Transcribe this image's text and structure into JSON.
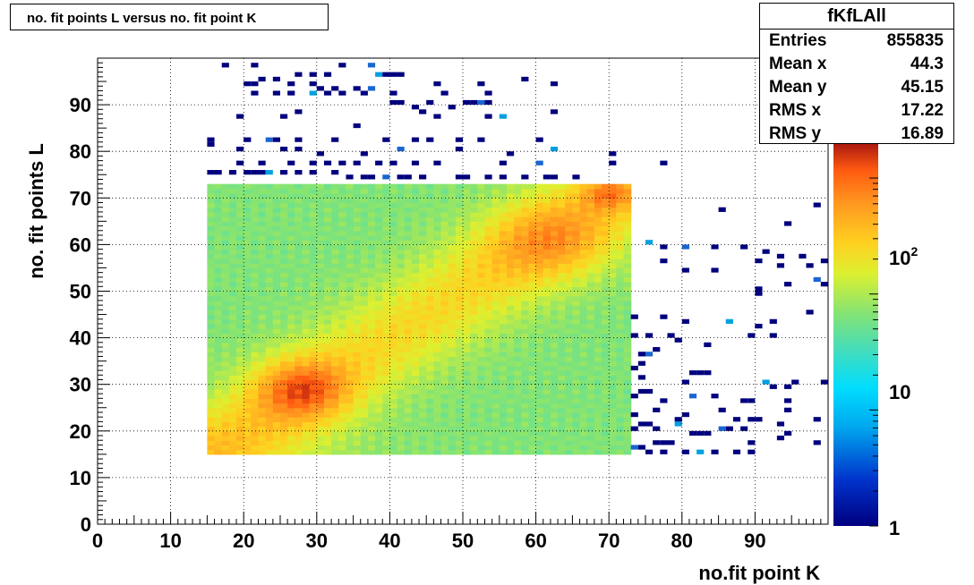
{
  "title": "no. fit points L versus no. fit point K",
  "stats": {
    "name": "fKfLAll",
    "rows": [
      {
        "label": "Entries",
        "value": "855835"
      },
      {
        "label": "Mean x",
        "value": "44.3"
      },
      {
        "label": "Mean y",
        "value": "45.15"
      },
      {
        "label": "RMS x",
        "value": "17.22"
      },
      {
        "label": "RMS y",
        "value": "16.89"
      }
    ]
  },
  "chart_data": {
    "type": "heatmap",
    "title": "no. fit points L versus no. fit point K",
    "xlabel": "no.fit point K",
    "ylabel": "no. fit points  L",
    "xlim": [
      0,
      100
    ],
    "ylim": [
      0,
      100
    ],
    "x_ticks": [
      0,
      10,
      20,
      30,
      40,
      50,
      60,
      70,
      80,
      90
    ],
    "y_ticks": [
      0,
      10,
      20,
      30,
      40,
      50,
      60,
      70,
      80,
      90
    ],
    "grid": true,
    "colorbar": {
      "scale": "log",
      "min": 1,
      "max": 2000,
      "tick_labels": [
        "1",
        "10",
        "10^2"
      ]
    },
    "dense_region": {
      "x_range": [
        15,
        73
      ],
      "y_range": [
        15,
        73
      ]
    },
    "hotspots": [
      {
        "x": 28,
        "y": 29,
        "level": "maximum"
      },
      {
        "x": 62,
        "y": 61,
        "level": "high"
      },
      {
        "x": 70,
        "y": 71,
        "level": "high"
      }
    ],
    "sparse_points": [
      [
        17,
        98
      ],
      [
        21,
        98
      ],
      [
        33,
        98
      ],
      [
        37,
        98
      ],
      [
        40,
        96
      ],
      [
        38,
        96
      ],
      [
        39,
        96
      ],
      [
        41,
        96
      ],
      [
        27,
        96
      ],
      [
        29,
        96
      ],
      [
        31,
        96
      ],
      [
        22,
        95
      ],
      [
        24,
        95
      ],
      [
        20,
        94
      ],
      [
        21,
        94
      ],
      [
        26,
        94
      ],
      [
        29,
        94
      ],
      [
        30,
        93
      ],
      [
        32,
        93
      ],
      [
        35,
        93
      ],
      [
        37,
        93
      ],
      [
        46,
        94
      ],
      [
        52,
        94
      ],
      [
        58,
        95
      ],
      [
        62,
        94
      ],
      [
        21,
        92
      ],
      [
        24,
        92
      ],
      [
        26,
        92
      ],
      [
        29,
        92
      ],
      [
        31,
        92
      ],
      [
        33,
        92
      ],
      [
        36,
        92
      ],
      [
        40,
        92
      ],
      [
        47,
        92
      ],
      [
        53,
        92
      ],
      [
        50,
        90
      ],
      [
        51,
        90
      ],
      [
        52,
        90
      ],
      [
        53,
        90
      ],
      [
        45,
        90
      ],
      [
        40,
        90
      ],
      [
        41,
        90
      ],
      [
        43,
        89
      ],
      [
        48,
        89
      ],
      [
        27,
        88
      ],
      [
        19,
        87
      ],
      [
        25,
        87
      ],
      [
        44,
        88
      ],
      [
        46,
        87
      ],
      [
        62,
        88
      ],
      [
        53,
        87
      ],
      [
        55,
        87
      ],
      [
        35,
        85
      ],
      [
        20,
        82
      ],
      [
        23,
        82
      ],
      [
        24,
        82
      ],
      [
        27,
        82
      ],
      [
        32,
        82
      ],
      [
        39,
        82
      ],
      [
        43,
        82
      ],
      [
        45,
        82
      ],
      [
        49,
        82
      ],
      [
        52,
        82
      ],
      [
        60,
        82
      ],
      [
        15,
        82
      ],
      [
        15,
        81
      ],
      [
        19,
        80
      ],
      [
        25,
        80
      ],
      [
        27,
        80
      ],
      [
        30,
        79
      ],
      [
        36,
        79
      ],
      [
        41,
        80
      ],
      [
        49,
        80
      ],
      [
        56,
        79
      ],
      [
        62,
        80
      ],
      [
        70,
        79
      ],
      [
        19,
        77
      ],
      [
        22,
        77
      ],
      [
        26,
        77
      ],
      [
        29,
        77
      ],
      [
        31,
        77
      ],
      [
        33,
        77
      ],
      [
        35,
        77
      ],
      [
        38,
        77
      ],
      [
        40,
        77
      ],
      [
        43,
        77
      ],
      [
        46,
        77
      ],
      [
        55,
        77
      ],
      [
        60,
        77
      ],
      [
        70,
        77
      ],
      [
        77,
        77
      ],
      [
        15,
        75
      ],
      [
        16,
        75
      ],
      [
        18,
        75
      ],
      [
        20,
        75
      ],
      [
        21,
        75
      ],
      [
        22,
        75
      ],
      [
        23,
        75
      ],
      [
        25,
        75
      ],
      [
        27,
        75
      ],
      [
        29,
        75
      ],
      [
        32,
        75
      ],
      [
        34,
        74
      ],
      [
        36,
        74
      ],
      [
        37,
        74
      ],
      [
        39,
        74
      ],
      [
        41,
        74
      ],
      [
        42,
        74
      ],
      [
        44,
        74
      ],
      [
        49,
        74
      ],
      [
        50,
        74
      ],
      [
        53,
        74
      ],
      [
        55,
        74
      ],
      [
        58,
        74
      ],
      [
        61,
        74
      ],
      [
        62,
        74
      ],
      [
        65,
        74
      ],
      [
        85,
        67
      ],
      [
        98,
        68
      ],
      [
        94,
        64
      ],
      [
        75,
        60
      ],
      [
        77,
        59
      ],
      [
        80,
        59
      ],
      [
        84,
        59
      ],
      [
        88,
        59
      ],
      [
        91,
        58
      ],
      [
        93,
        57
      ],
      [
        96,
        57
      ],
      [
        99,
        56
      ],
      [
        77,
        56
      ],
      [
        90,
        56
      ],
      [
        80,
        54
      ],
      [
        84,
        54
      ],
      [
        93,
        55
      ],
      [
        97,
        55
      ],
      [
        94,
        51
      ],
      [
        99,
        51
      ],
      [
        90,
        49
      ],
      [
        90,
        50
      ],
      [
        98,
        52
      ],
      [
        73,
        44
      ],
      [
        77,
        44
      ],
      [
        80,
        43
      ],
      [
        86,
        43
      ],
      [
        92,
        43
      ],
      [
        97,
        45
      ],
      [
        90,
        42
      ],
      [
        73,
        40
      ],
      [
        75,
        40
      ],
      [
        78,
        40
      ],
      [
        79,
        39
      ],
      [
        89,
        40
      ],
      [
        92,
        40
      ],
      [
        83,
        38
      ],
      [
        76,
        37
      ],
      [
        74,
        36
      ],
      [
        75,
        36
      ],
      [
        74,
        34
      ],
      [
        73,
        33
      ],
      [
        82,
        32
      ],
      [
        83,
        32
      ],
      [
        81,
        32
      ],
      [
        92,
        29
      ],
      [
        94,
        29
      ],
      [
        74,
        31
      ],
      [
        80,
        30
      ],
      [
        91,
        30
      ],
      [
        95,
        30
      ],
      [
        99,
        30
      ],
      [
        74,
        28
      ],
      [
        75,
        28
      ],
      [
        73,
        27
      ],
      [
        77,
        26
      ],
      [
        81,
        27
      ],
      [
        84,
        27
      ],
      [
        88,
        26
      ],
      [
        89,
        26
      ],
      [
        94,
        26
      ],
      [
        76,
        24
      ],
      [
        80,
        23
      ],
      [
        85,
        24
      ],
      [
        94,
        24
      ],
      [
        73,
        23
      ],
      [
        79,
        22
      ],
      [
        87,
        22
      ],
      [
        89,
        22
      ],
      [
        90,
        22
      ],
      [
        74,
        21
      ],
      [
        75,
        21
      ],
      [
        79,
        21
      ],
      [
        85,
        20
      ],
      [
        88,
        20
      ],
      [
        93,
        21
      ],
      [
        98,
        22
      ],
      [
        73,
        20
      ],
      [
        76,
        20
      ],
      [
        86,
        20
      ],
      [
        81,
        19
      ],
      [
        82,
        19
      ],
      [
        83,
        19
      ],
      [
        94,
        19
      ],
      [
        93,
        18
      ],
      [
        76,
        17
      ],
      [
        77,
        17
      ],
      [
        78,
        17
      ],
      [
        89,
        17
      ],
      [
        98,
        17
      ],
      [
        73,
        16
      ],
      [
        74,
        16
      ],
      [
        75,
        15
      ],
      [
        77,
        15
      ],
      [
        80,
        15
      ],
      [
        82,
        15
      ],
      [
        84,
        15
      ],
      [
        87,
        15
      ],
      [
        89,
        15
      ]
    ]
  }
}
